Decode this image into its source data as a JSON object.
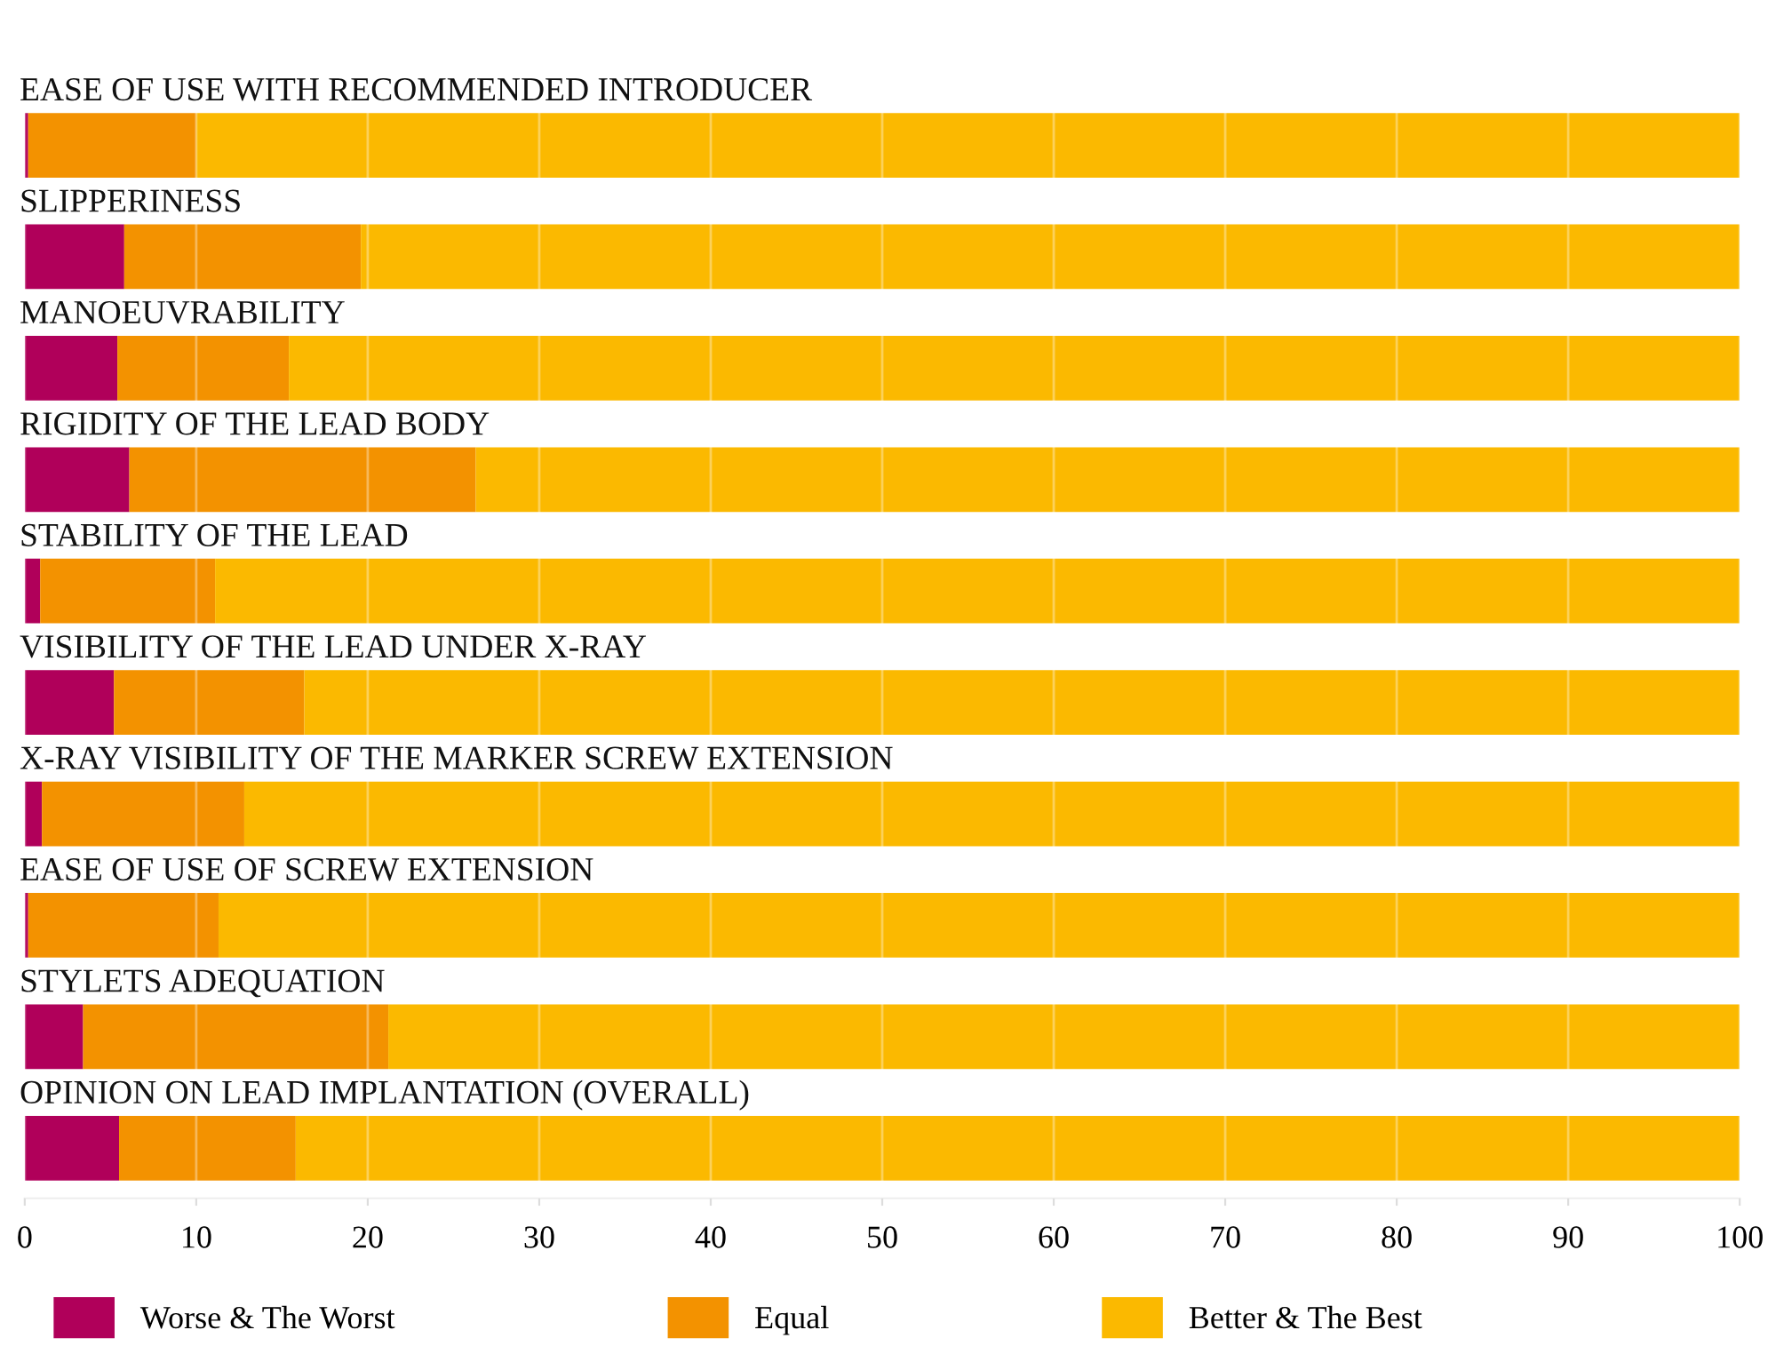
{
  "chart_data": {
    "type": "bar",
    "orientation": "horizontal",
    "stacked": true,
    "categories": [
      "EASE OF USE WITH RECOMMENDED INTRODUCER",
      "SLIPPERINESS",
      "MANOEUVRABILITY",
      "RIGIDITY OF THE LEAD BODY",
      "STABILITY OF THE LEAD",
      "VISIBILITY OF THE LEAD UNDER X-RAY",
      "X-RAY VISIBILITY OF THE MARKER SCREW EXTENSION",
      "EASE OF USE OF SCREW EXTENSION",
      "STYLETS ADEQUATION",
      "OPINION ON LEAD IMPLANTATION (OVERALL)"
    ],
    "series": [
      {
        "name": "Worse & The Worst",
        "color": "#b0005a",
        "values": [
          0.2,
          5.8,
          5.4,
          6.1,
          0.9,
          5.2,
          1.0,
          0.2,
          3.4,
          5.5
        ]
      },
      {
        "name": "Equal",
        "color": "#f39200",
        "values": [
          9.8,
          13.8,
          10.0,
          20.2,
          10.2,
          11.1,
          11.8,
          11.1,
          17.8,
          10.3
        ]
      },
      {
        "name": "Better & The Best",
        "color": "#fbb900",
        "values": [
          90.0,
          80.4,
          84.6,
          73.7,
          88.9,
          83.7,
          87.2,
          88.7,
          78.8,
          84.2
        ]
      }
    ],
    "xlim": [
      0,
      100
    ],
    "xticks": [
      0,
      10,
      20,
      30,
      40,
      50,
      60,
      70,
      80,
      90,
      100
    ],
    "grid": "x",
    "legend": "bottom"
  }
}
